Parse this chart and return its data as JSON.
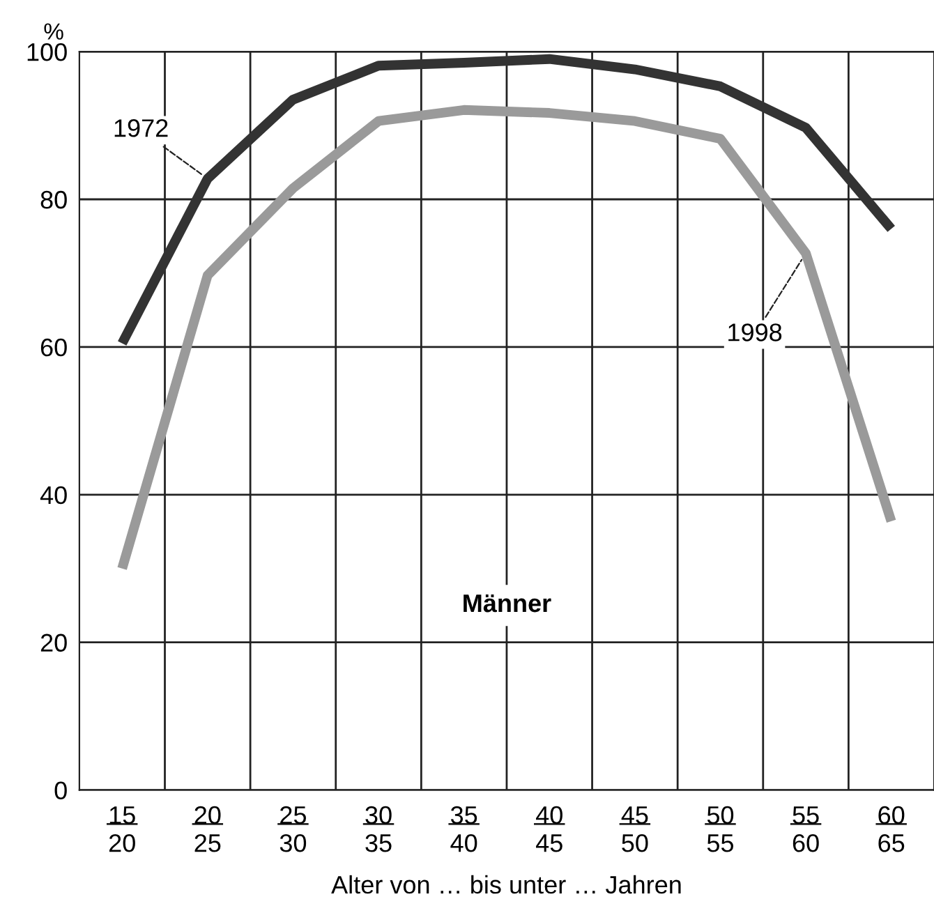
{
  "chart_data": {
    "type": "line",
    "ylabel": "%",
    "xlabel": "Alter von … bis unter … Jahren",
    "categories": [
      "15\n20",
      "20\n25",
      "25\n30",
      "30\n35",
      "35\n40",
      "40\n45",
      "45\n50",
      "50\n55",
      "55\n60",
      "60\n65"
    ],
    "series": [
      {
        "name": "1972",
        "color": "#333333",
        "values": [
          60.5,
          82.8,
          93.5,
          98.1,
          98.5,
          99,
          97.6,
          95.3,
          89.7,
          76
        ]
      },
      {
        "name": "1998",
        "color": "#9a9a9a",
        "values": [
          30,
          69.7,
          81.5,
          90.6,
          92.1,
          91.7,
          90.6,
          88.2,
          72.7,
          36.4
        ]
      }
    ],
    "ylim": [
      0,
      100
    ],
    "yticks": [
      0,
      20,
      40,
      60,
      80,
      100
    ],
    "grid": true,
    "legend": false,
    "marker": "none",
    "line_style": "solid",
    "annotations": [
      "Männer"
    ]
  }
}
